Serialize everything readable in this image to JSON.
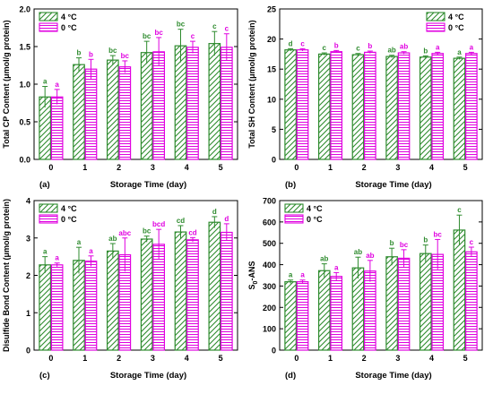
{
  "legend_labels": [
    "4 °C",
    "0 °C"
  ],
  "colors": {
    "series_4C": "#2e8b2e",
    "series_0C": "#e000e0",
    "axis": "#000000"
  },
  "chart_data": [
    {
      "type": "bar",
      "panel_label": "(a)",
      "xlabel": "Storage Time (day)",
      "ylabel": "Total CP Content (μmol/g protein)",
      "categories": [
        "0",
        "1",
        "2",
        "3",
        "4",
        "5"
      ],
      "ylim": [
        0,
        2.0
      ],
      "yticks": [
        "0.0",
        "0.5",
        "1.0",
        "1.5",
        "2.0"
      ],
      "series": [
        {
          "name": "4 °C",
          "values": [
            0.83,
            1.26,
            1.32,
            1.42,
            1.51,
            1.54
          ],
          "errors": [
            0.14,
            0.09,
            0.06,
            0.15,
            0.22,
            0.16
          ],
          "letters": [
            "a",
            "b",
            "bc",
            "bc",
            "bc",
            "c"
          ]
        },
        {
          "name": "0 °C",
          "values": [
            0.83,
            1.2,
            1.23,
            1.43,
            1.49,
            1.49
          ],
          "errors": [
            0.1,
            0.13,
            0.08,
            0.19,
            0.08,
            0.18
          ],
          "letters": [
            "a",
            "b",
            "bc",
            "bc",
            "c",
            "c"
          ]
        }
      ],
      "legend": "top-left",
      "grid": false
    },
    {
      "type": "bar",
      "panel_label": "(b)",
      "xlabel": "Storage Time (day)",
      "ylabel": "Total SH Content (μmol/g protein)",
      "categories": [
        "0",
        "1",
        "2",
        "3",
        "4",
        "5"
      ],
      "ylim": [
        0,
        25
      ],
      "yticks": [
        "0",
        "5",
        "10",
        "15",
        "20",
        "25"
      ],
      "series": [
        {
          "name": "4 °C",
          "values": [
            18.2,
            17.5,
            17.4,
            17.1,
            17.0,
            16.8
          ],
          "errors": [
            0.2,
            0.2,
            0.2,
            0.2,
            0.2,
            0.2
          ],
          "letters": [
            "d",
            "c",
            "c",
            "ab",
            "b",
            "a"
          ]
        },
        {
          "name": "0 °C",
          "values": [
            18.2,
            17.9,
            17.8,
            17.7,
            17.6,
            17.6
          ],
          "errors": [
            0.2,
            0.2,
            0.2,
            0.2,
            0.2,
            0.2
          ],
          "letters": [
            "c",
            "b",
            "b",
            "ab",
            "a",
            "a"
          ]
        }
      ],
      "legend": "top-right",
      "grid": false
    },
    {
      "type": "bar",
      "panel_label": "(c)",
      "xlabel": "Storage Time (day)",
      "ylabel": "Disulfide Bond Content (μmol/g protein)",
      "categories": [
        "0",
        "1",
        "2",
        "3",
        "4",
        "5"
      ],
      "ylim": [
        0,
        4
      ],
      "yticks": [
        "0",
        "1",
        "2",
        "3",
        "4"
      ],
      "series": [
        {
          "name": "4 °C",
          "values": [
            2.28,
            2.4,
            2.65,
            2.97,
            3.16,
            3.42
          ],
          "errors": [
            0.22,
            0.35,
            0.2,
            0.08,
            0.17,
            0.15
          ],
          "letters": [
            "a",
            "a",
            "ab",
            "bc",
            "cd",
            "d"
          ]
        },
        {
          "name": "0 °C",
          "values": [
            2.28,
            2.38,
            2.55,
            2.83,
            2.95,
            3.15
          ],
          "errors": [
            0.05,
            0.14,
            0.45,
            0.4,
            0.06,
            0.23
          ],
          "letters": [
            "a",
            "a",
            "abc",
            "bcd",
            "cd",
            "d"
          ]
        }
      ],
      "legend": "top-left",
      "grid": false
    },
    {
      "type": "bar",
      "panel_label": "(d)",
      "xlabel": "Storage Time (day)",
      "ylabel": "S0-ANS",
      "categories": [
        "0",
        "1",
        "2",
        "3",
        "4",
        "5"
      ],
      "ylim": [
        0,
        700
      ],
      "yticks": [
        "0",
        "100",
        "200",
        "300",
        "400",
        "500",
        "600",
        "700"
      ],
      "series": [
        {
          "name": "4 °C",
          "values": [
            320,
            372,
            385,
            437,
            452,
            562
          ],
          "errors": [
            8,
            32,
            50,
            40,
            40,
            70
          ],
          "letters": [
            "a",
            "ab",
            "ab",
            "b",
            "b",
            "c"
          ]
        },
        {
          "name": "0 °C",
          "values": [
            320,
            345,
            370,
            430,
            448,
            460
          ],
          "errors": [
            8,
            18,
            50,
            40,
            70,
            22
          ],
          "letters": [
            "a",
            "a",
            "ab",
            "bc",
            "bc",
            "c"
          ]
        }
      ],
      "legend": "top-left",
      "grid": false
    }
  ]
}
